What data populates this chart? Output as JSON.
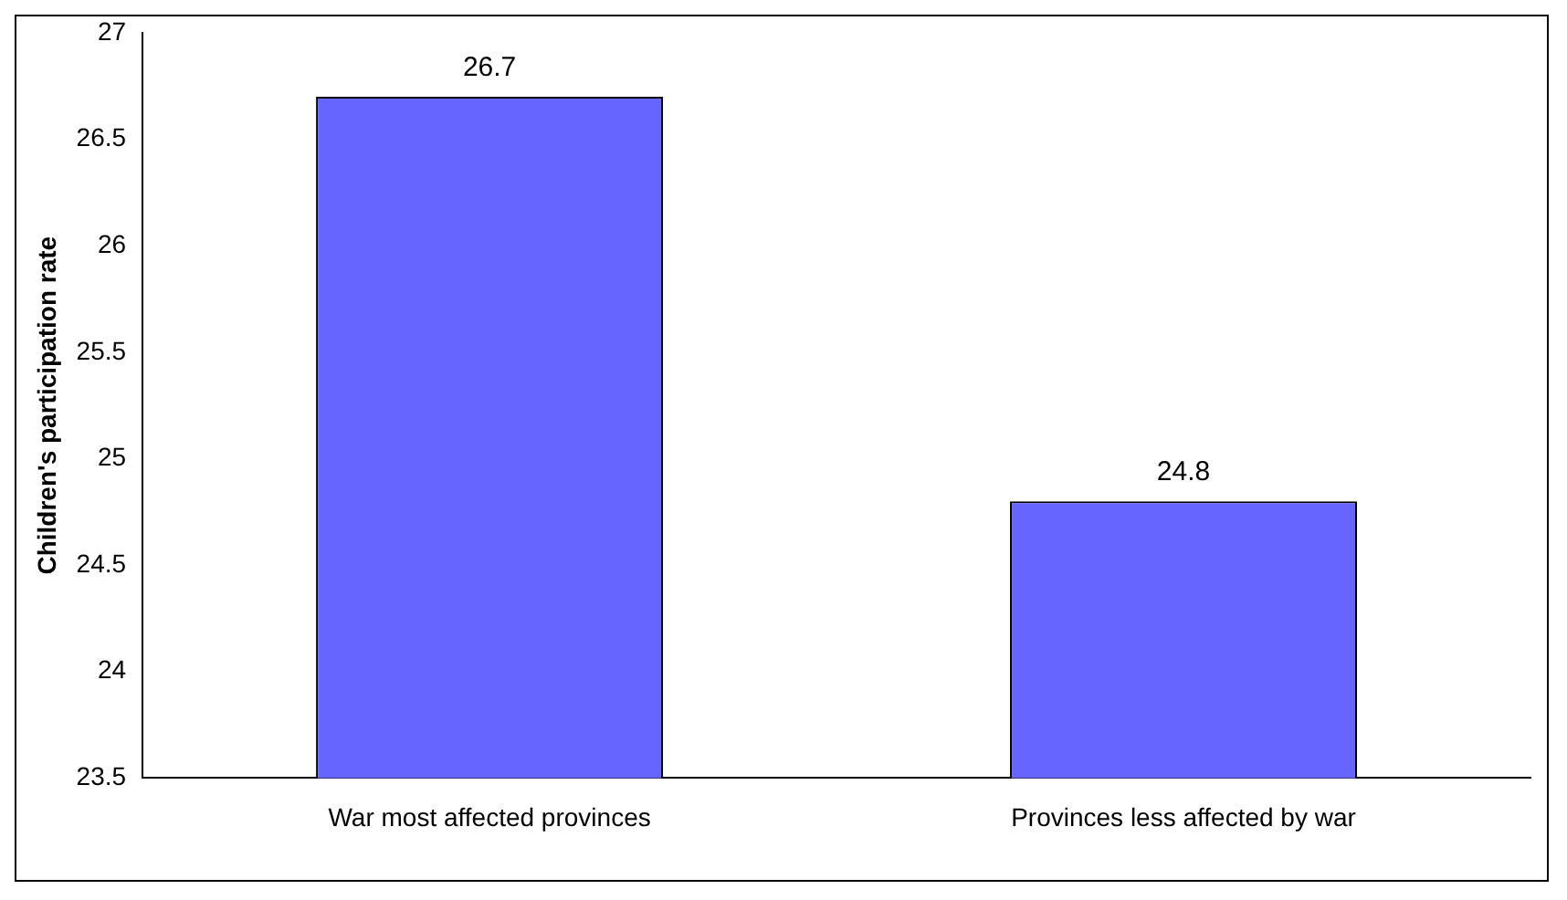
{
  "chart_data": {
    "type": "bar",
    "ylabel": "Children's participation rate",
    "categories": [
      "War most affected provinces",
      "Provinces less affected by war"
    ],
    "values": [
      26.7,
      24.8
    ],
    "color": "#6666ff",
    "ylim": [
      23.5,
      27
    ],
    "yticks": [
      23.5,
      24,
      24.5,
      25,
      25.5,
      26,
      26.5,
      27
    ],
    "grid": false,
    "legend": false,
    "data_labels": true
  }
}
